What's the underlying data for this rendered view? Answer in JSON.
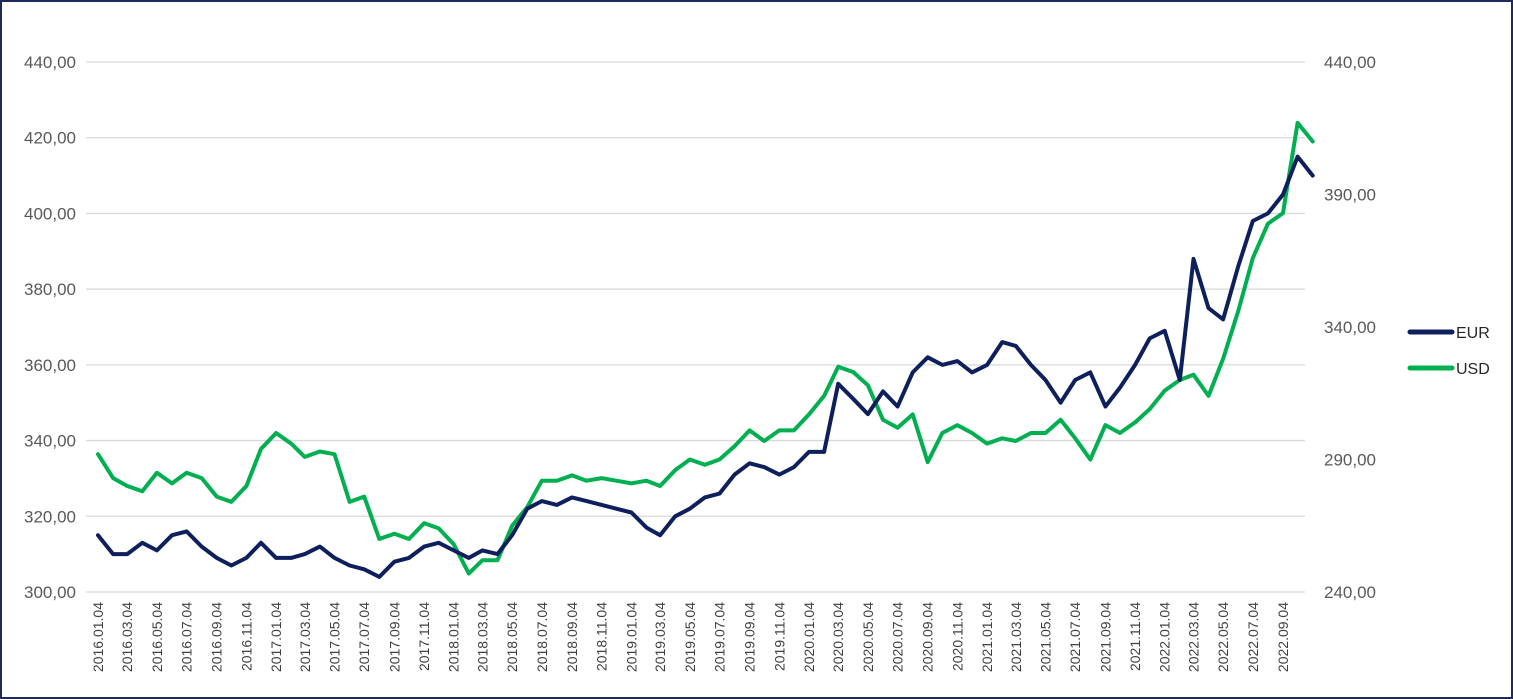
{
  "chart_data": {
    "type": "line",
    "title": "",
    "xlabel": "",
    "ylabel": "",
    "legend_position": "right",
    "grid": true,
    "y_left": {
      "min": 300,
      "max": 440,
      "ticks": [
        300,
        320,
        340,
        360,
        380,
        400,
        420,
        440
      ]
    },
    "y_right": {
      "min": 240,
      "max": 440,
      "ticks": [
        240,
        290,
        340,
        390,
        440
      ]
    },
    "x_tick_labels": [
      "2016.01.04",
      "2016.03.04",
      "2016.05.04",
      "2016.07.04",
      "2016.09.04",
      "2016.11.04",
      "2017.01.04",
      "2017.03.04",
      "2017.05.04",
      "2017.07.04",
      "2017.09.04",
      "2017.11.04",
      "2018.01.04",
      "2018.03.04",
      "2018.05.04",
      "2018.07.04",
      "2018.09.04",
      "2018.11.04",
      "2019.01.04",
      "2019.03.04",
      "2019.05.04",
      "2019.07.04",
      "2019.09.04",
      "2019.11.04",
      "2020.01.04",
      "2020.03.04",
      "2020.05.04",
      "2020.07.04",
      "2020.09.04",
      "2020.11.04",
      "2021.01.04",
      "2021.03.04",
      "2021.05.04",
      "2021.07.04",
      "2021.09.04",
      "2021.11.04",
      "2022.01.04",
      "2022.03.04",
      "2022.05.04",
      "2022.07.04",
      "2022.09.04"
    ],
    "series": [
      {
        "name": "EUR",
        "axis": "left",
        "color": "#0d1f5c",
        "x": [
          "2016.01.04",
          "2016.02.04",
          "2016.03.04",
          "2016.04.04",
          "2016.05.04",
          "2016.06.04",
          "2016.07.04",
          "2016.08.04",
          "2016.09.04",
          "2016.10.04",
          "2016.11.04",
          "2016.12.04",
          "2017.01.04",
          "2017.02.04",
          "2017.03.04",
          "2017.04.04",
          "2017.05.04",
          "2017.06.04",
          "2017.07.04",
          "2017.08.04",
          "2017.09.04",
          "2017.10.04",
          "2017.11.04",
          "2017.12.04",
          "2018.01.04",
          "2018.02.04",
          "2018.03.04",
          "2018.04.04",
          "2018.05.04",
          "2018.06.04",
          "2018.07.04",
          "2018.08.04",
          "2018.09.04",
          "2018.10.04",
          "2018.11.04",
          "2018.12.04",
          "2019.01.04",
          "2019.02.04",
          "2019.03.04",
          "2019.04.04",
          "2019.05.04",
          "2019.06.04",
          "2019.07.04",
          "2019.08.04",
          "2019.09.04",
          "2019.10.04",
          "2019.11.04",
          "2019.12.04",
          "2020.01.04",
          "2020.02.04",
          "2020.03.04",
          "2020.04.04",
          "2020.05.04",
          "2020.06.04",
          "2020.07.04",
          "2020.08.04",
          "2020.09.04",
          "2020.10.04",
          "2020.11.04",
          "2020.12.04",
          "2021.01.04",
          "2021.02.04",
          "2021.03.04",
          "2021.04.04",
          "2021.05.04",
          "2021.06.04",
          "2021.07.04",
          "2021.08.04",
          "2021.09.04",
          "2021.10.04",
          "2021.11.04",
          "2021.12.04",
          "2022.01.04",
          "2022.02.04",
          "2022.03.04",
          "2022.04.04",
          "2022.05.04",
          "2022.06.04",
          "2022.07.04",
          "2022.08.04",
          "2022.09.04",
          "2022.10.04",
          "2022.11.04"
        ],
        "values": [
          315,
          310,
          310,
          313,
          311,
          315,
          316,
          312,
          309,
          307,
          309,
          313,
          309,
          309,
          310,
          312,
          309,
          307,
          306,
          304,
          308,
          309,
          312,
          313,
          311,
          309,
          311,
          310,
          315,
          322,
          324,
          323,
          325,
          324,
          323,
          322,
          321,
          317,
          315,
          320,
          322,
          325,
          326,
          331,
          334,
          333,
          331,
          333,
          337,
          337,
          355,
          351,
          347,
          353,
          349,
          358,
          362,
          360,
          361,
          358,
          360,
          366,
          365,
          360,
          356,
          350,
          356,
          358,
          349,
          354,
          360,
          367,
          369,
          356,
          388,
          375,
          372,
          386,
          398,
          400,
          405,
          415,
          410
        ]
      },
      {
        "name": "USD",
        "axis": "right",
        "color": "#00b050",
        "x": [
          "2016.01.04",
          "2016.02.04",
          "2016.03.04",
          "2016.04.04",
          "2016.05.04",
          "2016.06.04",
          "2016.07.04",
          "2016.08.04",
          "2016.09.04",
          "2016.10.04",
          "2016.11.04",
          "2016.12.04",
          "2017.01.04",
          "2017.02.04",
          "2017.03.04",
          "2017.04.04",
          "2017.05.04",
          "2017.06.04",
          "2017.07.04",
          "2017.08.04",
          "2017.09.04",
          "2017.10.04",
          "2017.11.04",
          "2017.12.04",
          "2018.01.04",
          "2018.02.04",
          "2018.03.04",
          "2018.04.04",
          "2018.05.04",
          "2018.06.04",
          "2018.07.04",
          "2018.08.04",
          "2018.09.04",
          "2018.10.04",
          "2018.11.04",
          "2018.12.04",
          "2019.01.04",
          "2019.02.04",
          "2019.03.04",
          "2019.04.04",
          "2019.05.04",
          "2019.06.04",
          "2019.07.04",
          "2019.08.04",
          "2019.09.04",
          "2019.10.04",
          "2019.11.04",
          "2019.12.04",
          "2020.01.04",
          "2020.02.04",
          "2020.03.04",
          "2020.04.04",
          "2020.05.04",
          "2020.06.04",
          "2020.07.04",
          "2020.08.04",
          "2020.09.04",
          "2020.10.04",
          "2020.11.04",
          "2020.12.04",
          "2021.01.04",
          "2021.02.04",
          "2021.03.04",
          "2021.04.04",
          "2021.05.04",
          "2021.06.04",
          "2021.07.04",
          "2021.08.04",
          "2021.09.04",
          "2021.10.04",
          "2021.11.04",
          "2021.12.04",
          "2022.01.04",
          "2022.02.04",
          "2022.03.04",
          "2022.04.04",
          "2022.05.04",
          "2022.06.04",
          "2022.07.04",
          "2022.08.04",
          "2022.09.04",
          "2022.10.04",
          "2022.11.04"
        ],
        "values": [
          292,
          283,
          280,
          278,
          285,
          281,
          285,
          283,
          276,
          274,
          280,
          294,
          300,
          296,
          291,
          293,
          292,
          274,
          276,
          260,
          262,
          260,
          266,
          264,
          258,
          247,
          252,
          252,
          265,
          272,
          282,
          282,
          284,
          282,
          283,
          282,
          281,
          282,
          280,
          286,
          290,
          288,
          290,
          295,
          301,
          297,
          301,
          301,
          307,
          314,
          325,
          323,
          318,
          305,
          302,
          307,
          289,
          300,
          303,
          300,
          296,
          298,
          297,
          300,
          300,
          305,
          298,
          290,
          303,
          300,
          304,
          309,
          316,
          320,
          322,
          314,
          328,
          346,
          366,
          379,
          383,
          417,
          410
        ]
      }
    ]
  }
}
